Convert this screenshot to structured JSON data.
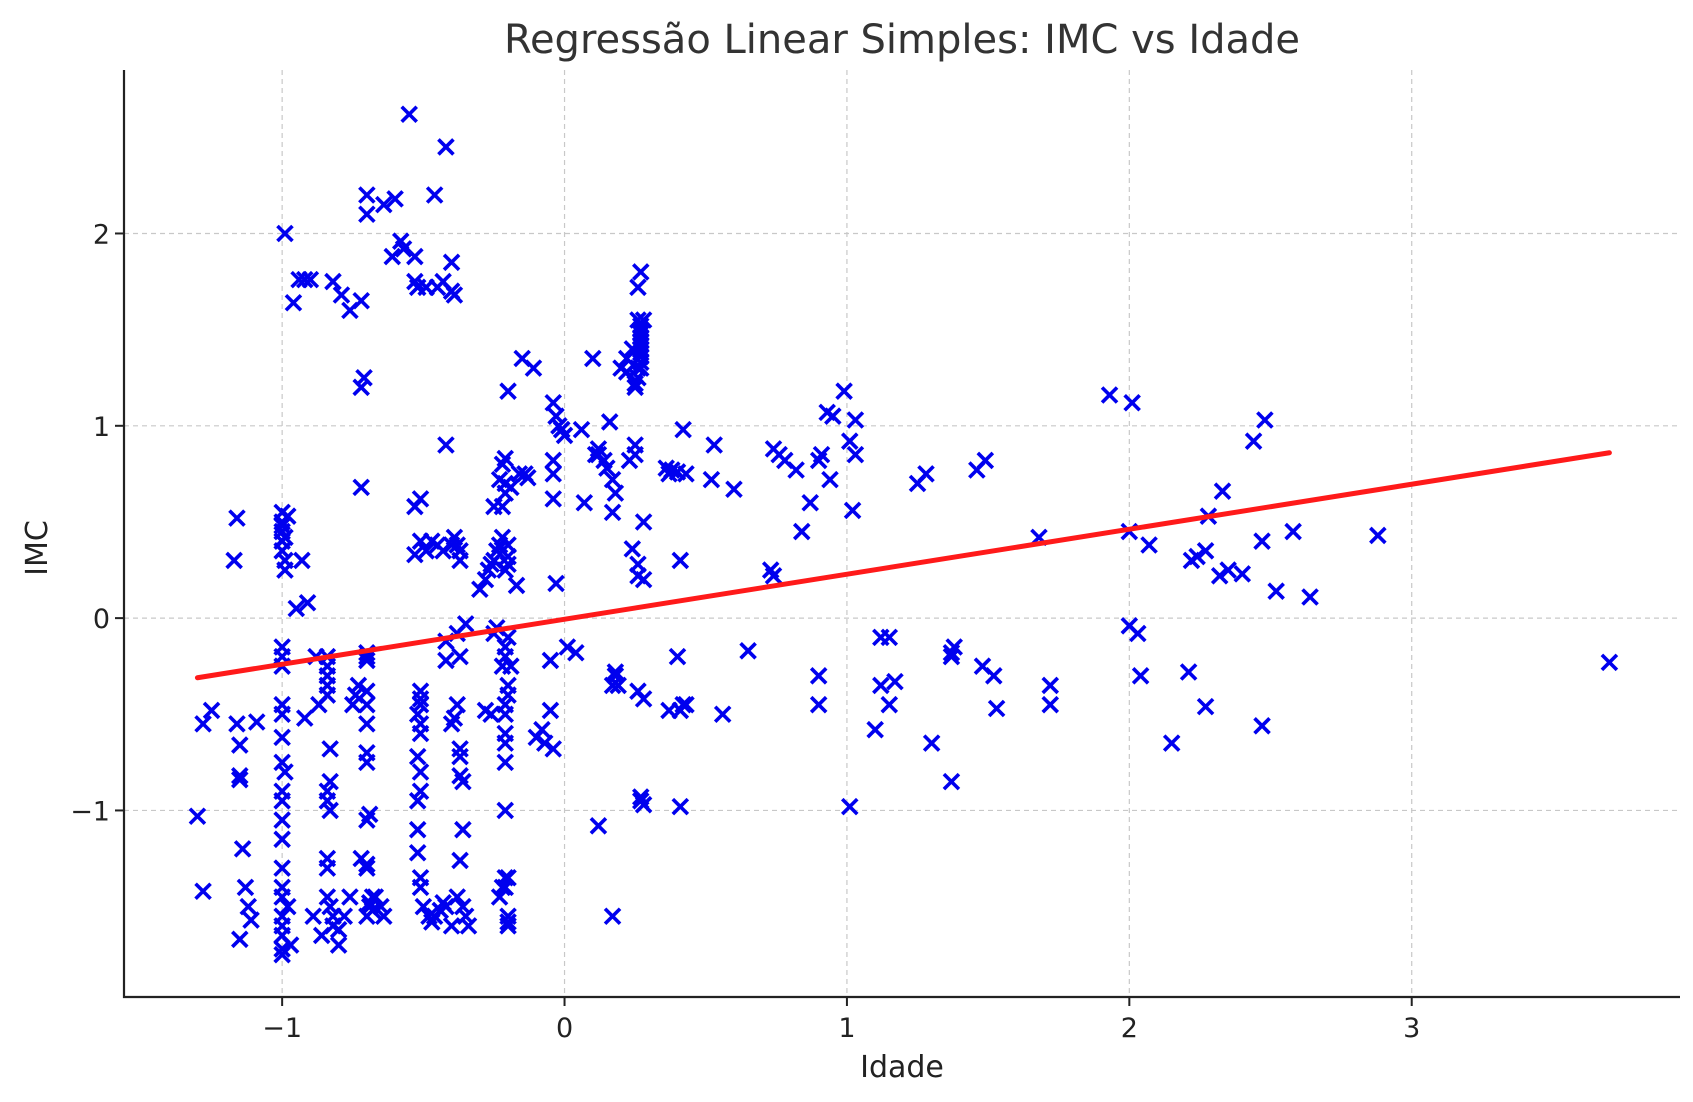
{
  "chart_data": {
    "type": "scatter",
    "title": "Regressão Linear Simples: IMC vs Idade",
    "xlabel": "Idade",
    "ylabel": "IMC",
    "xlim": [
      -1.56,
      3.95
    ],
    "ylim": [
      -1.97,
      2.85
    ],
    "xticks": [
      -1,
      0,
      1,
      2,
      3
    ],
    "yticks": [
      -1,
      0,
      1,
      2
    ],
    "xtick_labels": [
      "−1",
      "0",
      "1",
      "2",
      "3"
    ],
    "ytick_labels": [
      "−1",
      "0",
      "1",
      "2"
    ],
    "grid": true,
    "marker": "x",
    "colors": {
      "points": "#0000ee",
      "regression_line": "#ff1a1a"
    },
    "regression_line": {
      "x": [
        -1.3,
        3.7
      ],
      "y": [
        -0.31,
        0.86
      ]
    },
    "series": [
      {
        "x": [
          -1.3,
          -1.28,
          -1.28,
          -1.25,
          -1.17,
          -1.16,
          -1.16,
          -1.15,
          -1.15,
          -1.14,
          -1.13,
          -1.12,
          -1.11,
          -1.09,
          -1.15,
          -1.15,
          -1.0,
          -1.0,
          -1.0,
          -1.0,
          -1.0,
          -0.99,
          -0.99,
          -0.98,
          -1.0,
          -0.99,
          -1.0,
          -1.0,
          -1.0,
          -1.0,
          -1.0,
          -1.0,
          -1.0,
          -0.99,
          -1.0,
          -1.0,
          -1.0,
          -1.0,
          -1.0,
          -1.0,
          -1.0,
          -0.98,
          -1.0,
          -1.0,
          -1.0,
          -1.0,
          -1.0,
          -0.97,
          -0.99,
          -0.96,
          -0.94,
          -0.92,
          -0.9,
          -0.93,
          -0.91,
          -0.95,
          -0.88,
          -0.92,
          -0.87,
          -0.84,
          -0.84,
          -0.84,
          -0.84,
          -0.84,
          -0.83,
          -0.83,
          -0.84,
          -0.84,
          -0.83,
          -0.84,
          -0.84,
          -0.84,
          -0.83,
          -0.82,
          -0.82,
          -0.8,
          -0.78,
          -0.76,
          -0.8,
          -0.86,
          -0.89,
          -0.82,
          -0.79,
          -0.76,
          -0.72,
          -0.7,
          -0.7,
          -0.71,
          -0.72,
          -0.72,
          -0.7,
          -0.7,
          -0.7,
          -0.7,
          -0.7,
          -0.7,
          -0.7,
          -0.7,
          -0.69,
          -0.7,
          -0.73,
          -0.74,
          -0.75,
          -0.72,
          -0.7,
          -0.7,
          -0.68,
          -0.69,
          -0.68,
          -0.7,
          -0.69,
          -0.67,
          -0.65,
          -0.64,
          -0.64,
          -0.61,
          -0.57,
          -0.6,
          -0.58,
          -0.55,
          -0.53,
          -0.53,
          -0.52,
          -0.51,
          -0.53,
          -0.51,
          -0.53,
          -0.51,
          -0.51,
          -0.51,
          -0.52,
          -0.51,
          -0.51,
          -0.52,
          -0.51,
          -0.51,
          -0.52,
          -0.52,
          -0.52,
          -0.51,
          -0.51,
          -0.5,
          -0.48,
          -0.47,
          -0.46,
          -0.44,
          -0.43,
          -0.42,
          -0.4,
          -0.43,
          -0.45,
          -0.47,
          -0.49,
          -0.42,
          -0.4,
          -0.39,
          -0.38,
          -0.37,
          -0.37,
          -0.37,
          -0.37,
          -0.37,
          -0.36,
          -0.36,
          -0.37,
          -0.38,
          -0.36,
          -0.35,
          -0.34,
          -0.35,
          -0.38,
          -0.37,
          -0.38,
          -0.39,
          -0.4,
          -0.42,
          -0.42,
          -0.4,
          -0.39,
          -0.4,
          -0.42,
          -0.46,
          -0.49,
          -0.43,
          -0.45,
          -0.3,
          -0.28,
          -0.27,
          -0.26,
          -0.25,
          -0.24,
          -0.23,
          -0.22,
          -0.22,
          -0.21,
          -0.21,
          -0.21,
          -0.21,
          -0.2,
          -0.2,
          -0.2,
          -0.2,
          -0.21,
          -0.21,
          -0.22,
          -0.2,
          -0.2,
          -0.21,
          -0.21,
          -0.21,
          -0.21,
          -0.21,
          -0.21,
          -0.21,
          -0.22,
          -0.2,
          -0.2,
          -0.2,
          -0.2,
          -0.21,
          -0.23,
          -0.24,
          -0.25,
          -0.26,
          -0.28,
          -0.25,
          -0.23,
          -0.22,
          -0.19,
          -0.17,
          -0.16,
          -0.14,
          -0.15,
          -0.13,
          -0.11,
          -0.2,
          -0.19,
          -0.1,
          -0.08,
          -0.07,
          -0.04,
          -0.05,
          -0.05,
          -0.04,
          -0.04,
          -0.04,
          -0.03,
          -0.03,
          -0.04,
          -0.02,
          -0.01,
          -0.01,
          0.0,
          0.01,
          0.04,
          0.06,
          0.07,
          0.1,
          0.11,
          0.12,
          0.12,
          0.12,
          0.14,
          0.15,
          0.16,
          0.17,
          0.18,
          0.18,
          0.19,
          0.17,
          0.2,
          0.22,
          0.22,
          0.24,
          0.24,
          0.25,
          0.26,
          0.27,
          0.27,
          0.27,
          0.27,
          0.27,
          0.27,
          0.27,
          0.27,
          0.27,
          0.27,
          0.27,
          0.28,
          0.26,
          0.25,
          0.25,
          0.26,
          0.26,
          0.27,
          0.26,
          0.26,
          0.28,
          0.28,
          0.28,
          0.26,
          0.27,
          0.27,
          0.28,
          0.25,
          0.23,
          0.17,
          0.18,
          0.17,
          0.36,
          0.37,
          0.38,
          0.4,
          0.41,
          0.42,
          0.41,
          0.42,
          0.37,
          0.43,
          0.4,
          0.41,
          0.43,
          0.52,
          0.53,
          0.56,
          0.6,
          0.65,
          0.73,
          0.74,
          0.74,
          0.76,
          0.78,
          0.82,
          0.84,
          0.87,
          0.9,
          0.91,
          0.94,
          0.93,
          0.95,
          0.9,
          0.9,
          0.99,
          1.01,
          1.02,
          1.03,
          1.03,
          1.01,
          1.1,
          1.12,
          1.12,
          1.15,
          1.15,
          1.17,
          1.25,
          1.28,
          1.3,
          1.37,
          1.37,
          1.38,
          1.37,
          1.46,
          1.48,
          1.49,
          1.52,
          1.53,
          1.68,
          1.72,
          1.72,
          1.93,
          2.0,
          2.01,
          2.03,
          2.04,
          2.07,
          2.0,
          2.15,
          2.21,
          2.22,
          2.24,
          2.27,
          2.28,
          2.27,
          2.32,
          2.33,
          2.35,
          2.4,
          2.44,
          2.47,
          2.48,
          2.52,
          2.47,
          2.58,
          2.64,
          2.88,
          3.7
        ],
        "y": [
          -1.03,
          -0.55,
          -1.42,
          -0.48,
          0.3,
          0.52,
          -0.55,
          -0.66,
          -0.84,
          -1.2,
          -1.4,
          -1.5,
          -1.57,
          -0.54,
          -1.67,
          -0.82,
          0.55,
          0.5,
          0.45,
          0.4,
          0.35,
          0.3,
          0.25,
          0.53,
          0.48,
          0.42,
          -0.15,
          -0.2,
          -0.25,
          -0.45,
          -0.5,
          -0.62,
          -0.75,
          -0.8,
          -0.9,
          -0.95,
          -1.05,
          -1.15,
          -1.3,
          -1.4,
          -1.45,
          -1.5,
          -1.55,
          -1.6,
          -1.65,
          -1.72,
          -1.75,
          -1.7,
          2.0,
          1.64,
          1.76,
          1.76,
          1.76,
          0.3,
          0.08,
          0.05,
          -0.2,
          -0.52,
          -0.45,
          -0.2,
          -0.25,
          -0.3,
          -0.35,
          -0.4,
          -0.68,
          -0.85,
          -0.9,
          -0.95,
          -1.0,
          -1.25,
          -1.3,
          -1.45,
          -1.5,
          -1.55,
          -1.6,
          -1.62,
          -1.55,
          -1.45,
          -1.7,
          -1.65,
          -1.55,
          1.75,
          1.68,
          1.6,
          1.65,
          2.2,
          2.1,
          1.25,
          1.2,
          0.68,
          -0.18,
          -0.2,
          -0.22,
          -0.38,
          -0.45,
          -0.55,
          -0.7,
          -0.75,
          -1.02,
          -1.05,
          -0.35,
          -0.4,
          -0.45,
          -1.25,
          -1.28,
          -1.3,
          -1.45,
          -1.5,
          -1.52,
          -1.55,
          -1.48,
          -1.45,
          -1.5,
          -1.55,
          2.15,
          1.88,
          1.92,
          2.18,
          1.96,
          2.62,
          1.88,
          1.75,
          1.72,
          0.62,
          0.58,
          0.4,
          0.33,
          -0.38,
          -0.42,
          -0.45,
          -0.5,
          -0.55,
          -0.6,
          -0.72,
          -0.8,
          -0.9,
          -0.95,
          -1.1,
          -1.22,
          -1.35,
          -1.4,
          -1.5,
          -1.55,
          -1.58,
          -1.55,
          -1.52,
          -1.48,
          -1.5,
          -1.6,
          0.35,
          0.38,
          0.4,
          0.35,
          0.9,
          0.38,
          0.42,
          0.38,
          0.3,
          0.35,
          -0.68,
          -0.72,
          -0.82,
          -0.85,
          -1.1,
          -1.26,
          -1.45,
          -1.5,
          -1.55,
          -1.6,
          -0.03,
          -0.08,
          -0.2,
          -0.45,
          -0.52,
          -0.55,
          -0.22,
          -0.12,
          1.7,
          1.68,
          1.85,
          2.45,
          2.2,
          1.72,
          1.75,
          1.72,
          0.15,
          0.2,
          0.25,
          0.28,
          0.3,
          0.35,
          0.38,
          0.42,
          0.8,
          0.83,
          0.65,
          0.7,
          0.25,
          0.28,
          0.32,
          0.38,
          -0.1,
          -0.15,
          -0.2,
          -0.25,
          -0.35,
          -0.4,
          -0.45,
          -0.5,
          -0.6,
          -0.65,
          -0.75,
          -1.0,
          -1.35,
          -1.4,
          -1.55,
          -1.6,
          -1.58,
          -1.35,
          -1.4,
          -1.45,
          -0.05,
          -0.08,
          -0.5,
          -0.48,
          0.58,
          0.72,
          0.58,
          0.68,
          0.17,
          0.75,
          0.75,
          1.35,
          0.73,
          1.3,
          1.18,
          -0.25,
          -0.62,
          -0.58,
          -0.65,
          -0.68,
          -0.22,
          -0.48,
          0.62,
          0.75,
          0.82,
          0.18,
          1.05,
          1.12,
          1.0,
          0.98,
          0.98,
          0.95,
          -0.15,
          -0.18,
          0.98,
          0.6,
          1.35,
          0.85,
          0.85,
          0.88,
          -1.08,
          0.82,
          0.78,
          1.02,
          0.72,
          0.65,
          -0.28,
          -0.35,
          0.55,
          1.3,
          1.35,
          1.28,
          1.4,
          0.36,
          0.9,
          1.55,
          1.52,
          1.5,
          1.48,
          1.46,
          1.44,
          1.42,
          1.4,
          1.38,
          1.36,
          1.33,
          1.3,
          1.55,
          1.25,
          1.2,
          1.22,
          1.3,
          1.72,
          1.8,
          0.28,
          0.22,
          0.2,
          0.5,
          -0.42,
          -0.38,
          -0.95,
          -0.93,
          -0.97,
          0.85,
          0.82,
          -1.55,
          -0.3,
          -0.35,
          0.78,
          0.75,
          0.77,
          0.76,
          0.3,
          0.98,
          -0.48,
          -0.45,
          -0.48,
          0.75,
          -0.2,
          -0.98,
          -0.45,
          0.72,
          0.9,
          -0.5,
          0.67,
          -0.17,
          0.25,
          0.22,
          0.88,
          0.85,
          0.82,
          0.77,
          0.45,
          0.6,
          0.82,
          0.85,
          0.72,
          1.07,
          1.05,
          -0.3,
          -0.45,
          1.18,
          0.92,
          0.56,
          0.85,
          1.03,
          -0.98,
          -0.58,
          -0.35,
          -0.1,
          -0.1,
          -0.45,
          -0.33,
          0.7,
          0.75,
          -0.65,
          -0.85,
          -0.18,
          -0.15,
          -0.2,
          0.77,
          -0.25,
          0.82,
          -0.3,
          -0.47,
          0.42,
          -0.35,
          -0.45,
          1.16,
          0.45,
          1.12,
          -0.08,
          -0.3,
          0.38,
          -0.04,
          -0.65,
          -0.28,
          0.3,
          0.32,
          0.35,
          0.53,
          -0.46,
          0.22,
          0.66,
          0.25,
          0.23,
          0.92,
          0.4,
          1.03,
          0.14,
          -0.56,
          0.45,
          0.11,
          0.43,
          -0.23
        ]
      }
    ]
  }
}
